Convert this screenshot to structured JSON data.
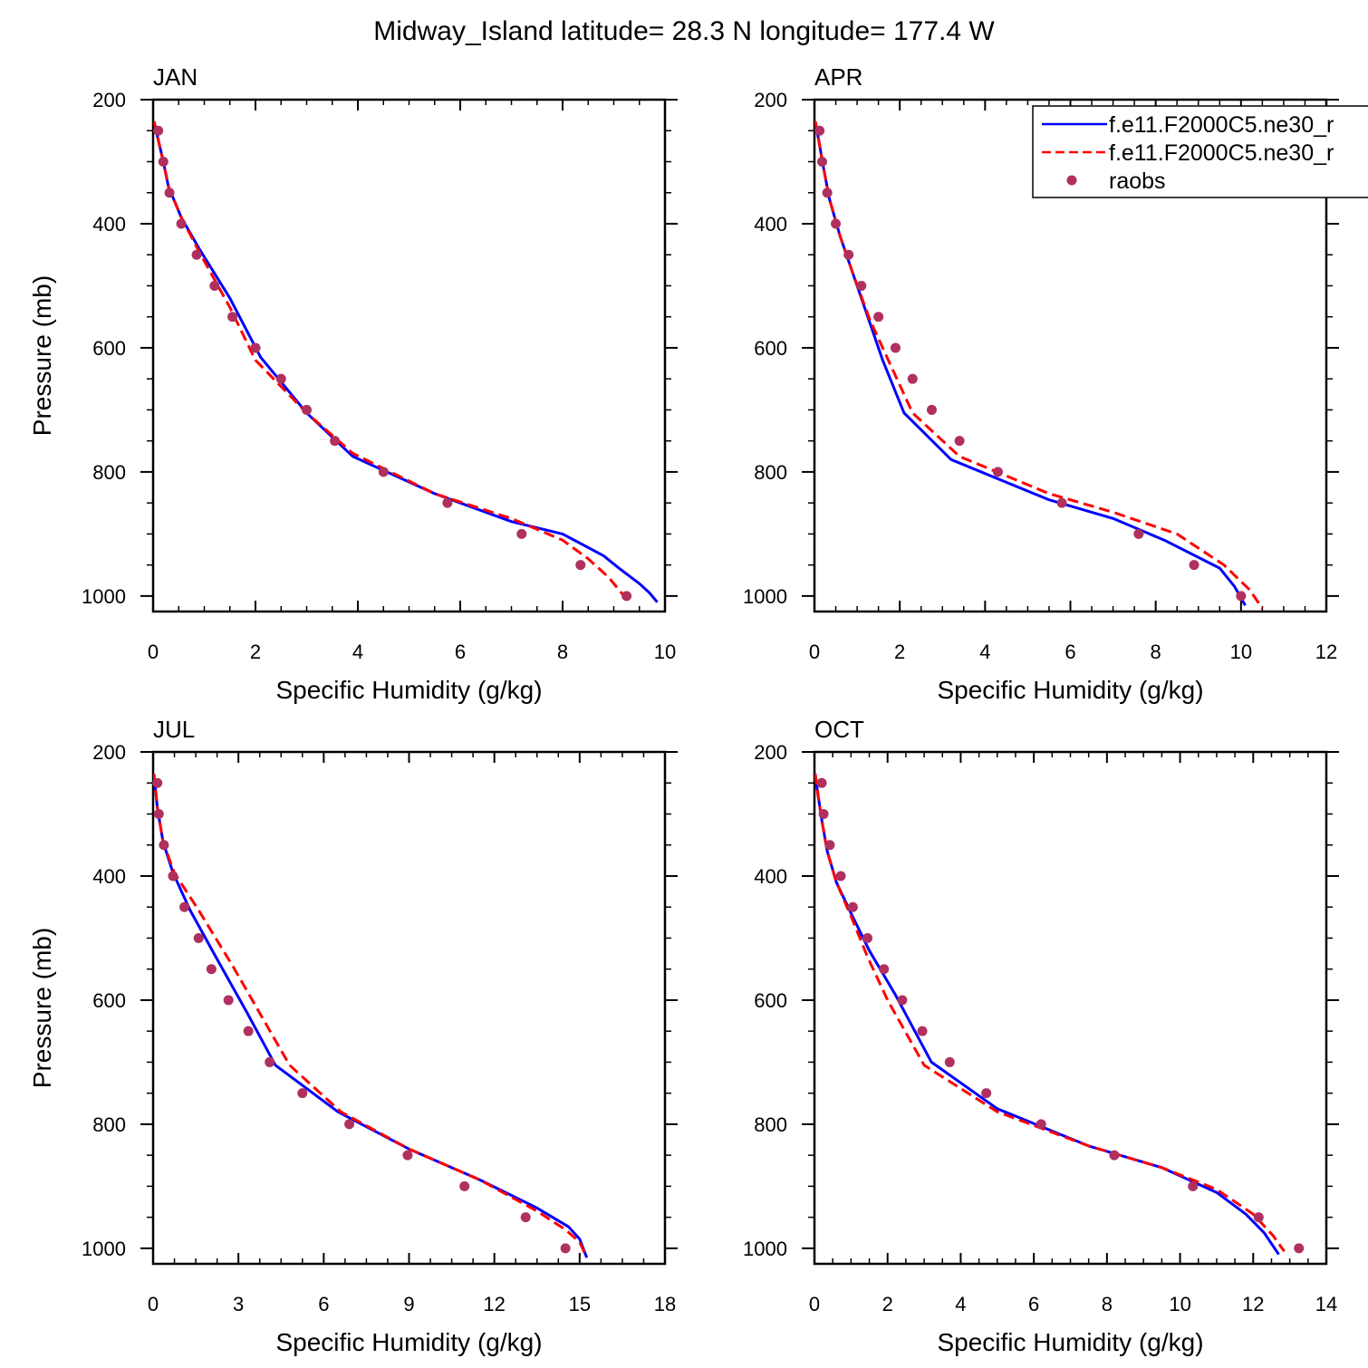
{
  "title": "Midway_Island  latitude= 28.3 N longitude= 177.4 W",
  "xlabel": "Specific Humidity (g/kg)",
  "ylabel": "Pressure (mb)",
  "legend": {
    "placement": "top-right of APR panel (clipped at right edge)",
    "items": [
      {
        "label": "f.e11.F2000C5.ne30_r",
        "style": "solid",
        "color": "#0000ff"
      },
      {
        "label": "f.e11.F2000C5.ne30_r",
        "style": "dashed",
        "color": "#ff0000"
      },
      {
        "label": "raobs",
        "style": "markers",
        "color": "#b03060"
      }
    ]
  },
  "colors": {
    "model_1": "#0000ff",
    "model_2": "#ff0000",
    "raobs": "#b03060"
  },
  "chart_data": [
    {
      "type": "line",
      "panel": "JAN",
      "xlim": [
        0,
        10
      ],
      "ylim": [
        1025,
        200
      ],
      "xticks": [
        0,
        2,
        4,
        6,
        8,
        10
      ],
      "yticks": [
        200,
        400,
        600,
        800,
        1000
      ],
      "series": [
        {
          "style": "solid",
          "color": "#0000ff",
          "x": [
            0.02,
            0.1,
            0.2,
            0.3,
            0.55,
            0.9,
            1.5,
            2.1,
            3.0,
            3.9,
            5.5,
            7.0,
            8.0,
            8.8,
            9.1,
            9.5,
            9.7,
            9.85
          ],
          "y": [
            235,
            265,
            300,
            340,
            390,
            440,
            520,
            615,
            705,
            775,
            835,
            880,
            900,
            935,
            955,
            980,
            995,
            1010
          ]
        },
        {
          "style": "dashed",
          "color": "#ff0000",
          "x": [
            0.02,
            0.1,
            0.2,
            0.3,
            0.55,
            0.9,
            1.5,
            2.0,
            3.0,
            3.9,
            5.5,
            7.0,
            8.0,
            8.5,
            8.9,
            9.2
          ],
          "y": [
            235,
            265,
            300,
            340,
            390,
            445,
            535,
            620,
            705,
            770,
            835,
            875,
            910,
            940,
            970,
            1000
          ]
        }
      ],
      "raobs": {
        "x": [
          0.1,
          0.2,
          0.32,
          0.55,
          0.85,
          1.2,
          1.55,
          2.0,
          2.5,
          3.0,
          3.55,
          4.5,
          5.75,
          7.2,
          8.35,
          9.25
        ],
        "y": [
          250,
          300,
          350,
          400,
          450,
          500,
          550,
          600,
          650,
          700,
          750,
          800,
          850,
          900,
          950,
          1000
        ]
      }
    },
    {
      "type": "line",
      "panel": "APR",
      "xlim": [
        0,
        12
      ],
      "ylim": [
        1025,
        200
      ],
      "xticks": [
        0,
        2,
        4,
        6,
        8,
        10,
        12
      ],
      "yticks": [
        200,
        400,
        600,
        800,
        1000
      ],
      "series": [
        {
          "style": "solid",
          "color": "#0000ff",
          "x": [
            0.02,
            0.1,
            0.2,
            0.35,
            0.6,
            0.9,
            1.3,
            1.6,
            2.1,
            3.2,
            5.5,
            7.0,
            8.2,
            9.5,
            9.85,
            10.1
          ],
          "y": [
            235,
            265,
            305,
            360,
            420,
            480,
            560,
            620,
            705,
            780,
            845,
            875,
            910,
            955,
            985,
            1015
          ]
        },
        {
          "style": "dashed",
          "color": "#ff0000",
          "x": [
            0.02,
            0.1,
            0.2,
            0.35,
            0.6,
            0.9,
            1.3,
            1.7,
            2.3,
            3.4,
            5.5,
            7.0,
            8.5,
            9.6,
            10.2,
            10.5
          ],
          "y": [
            235,
            265,
            305,
            360,
            420,
            480,
            555,
            615,
            705,
            775,
            835,
            865,
            900,
            950,
            990,
            1020
          ]
        }
      ],
      "raobs": {
        "x": [
          0.12,
          0.18,
          0.3,
          0.5,
          0.8,
          1.1,
          1.5,
          1.9,
          2.3,
          2.75,
          3.4,
          4.3,
          5.8,
          7.6,
          8.9,
          10.0
        ],
        "y": [
          250,
          300,
          350,
          400,
          450,
          500,
          550,
          600,
          650,
          700,
          750,
          800,
          850,
          900,
          950,
          1000
        ]
      }
    },
    {
      "type": "line",
      "panel": "JUL",
      "xlim": [
        0,
        18
      ],
      "ylim": [
        1025,
        200
      ],
      "xticks": [
        0,
        3,
        6,
        9,
        12,
        15,
        18
      ],
      "yticks": [
        200,
        400,
        600,
        800,
        1000
      ],
      "series": [
        {
          "style": "solid",
          "color": "#0000ff",
          "x": [
            0.03,
            0.15,
            0.35,
            0.7,
            1.3,
            2.2,
            3.3,
            4.3,
            6.5,
            9.0,
            11.5,
            13.5,
            14.6,
            15.0,
            15.25
          ],
          "y": [
            235,
            290,
            345,
            395,
            455,
            530,
            620,
            705,
            780,
            840,
            890,
            935,
            965,
            985,
            1015
          ]
        },
        {
          "style": "dashed",
          "color": "#ff0000",
          "x": [
            0.03,
            0.15,
            0.35,
            0.75,
            1.6,
            2.8,
            3.8,
            4.8,
            6.6,
            9.0,
            11.5,
            13.5,
            14.5,
            15.0,
            15.2
          ],
          "y": [
            235,
            290,
            345,
            395,
            455,
            545,
            625,
            705,
            780,
            840,
            890,
            940,
            970,
            990,
            1010
          ]
        }
      ],
      "raobs": {
        "x": [
          0.15,
          0.2,
          0.38,
          0.7,
          1.1,
          1.6,
          2.05,
          2.65,
          3.35,
          4.1,
          5.25,
          6.9,
          8.95,
          10.95,
          13.1,
          14.5
        ],
        "y": [
          250,
          300,
          350,
          400,
          450,
          500,
          550,
          600,
          650,
          700,
          750,
          800,
          850,
          900,
          950,
          1000
        ]
      }
    },
    {
      "type": "line",
      "panel": "OCT",
      "xlim": [
        0,
        14
      ],
      "ylim": [
        1025,
        200
      ],
      "xticks": [
        0,
        2,
        4,
        6,
        8,
        10,
        12,
        14
      ],
      "yticks": [
        200,
        400,
        600,
        800,
        1000
      ],
      "series": [
        {
          "style": "solid",
          "color": "#0000ff",
          "x": [
            0.02,
            0.1,
            0.2,
            0.35,
            0.6,
            1.0,
            1.5,
            2.2,
            3.2,
            5.0,
            7.5,
            9.5,
            11.0,
            11.8,
            12.3,
            12.7
          ],
          "y": [
            235,
            270,
            310,
            360,
            410,
            460,
            520,
            590,
            700,
            775,
            835,
            870,
            910,
            945,
            975,
            1010
          ]
        },
        {
          "style": "dashed",
          "color": "#ff0000",
          "x": [
            0.02,
            0.1,
            0.2,
            0.35,
            0.6,
            1.0,
            1.45,
            2.0,
            3.0,
            5.0,
            7.5,
            9.5,
            11.0,
            12.0,
            12.55,
            12.85
          ],
          "y": [
            235,
            270,
            310,
            360,
            410,
            465,
            530,
            600,
            705,
            780,
            835,
            870,
            905,
            945,
            980,
            1005
          ]
        }
      ],
      "raobs": {
        "x": [
          0.2,
          0.25,
          0.42,
          0.72,
          1.05,
          1.45,
          1.9,
          2.4,
          2.95,
          3.7,
          4.7,
          6.2,
          8.2,
          10.35,
          12.15,
          13.25
        ],
        "y": [
          250,
          300,
          350,
          400,
          450,
          500,
          550,
          600,
          650,
          700,
          750,
          800,
          850,
          900,
          950,
          1000
        ]
      }
    }
  ]
}
